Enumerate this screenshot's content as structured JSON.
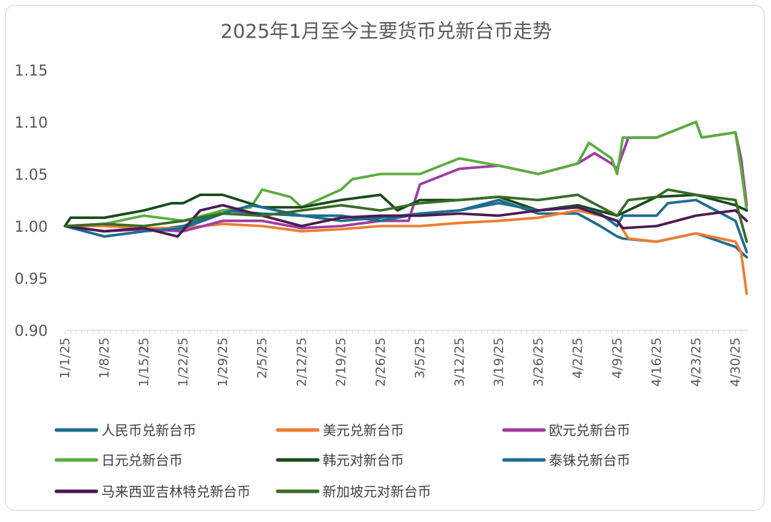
{
  "chart_data": {
    "type": "line",
    "title": "2025年1月至今主要货币兑新台币走势",
    "xlabel": "",
    "ylabel": "",
    "ylim": [
      0.9,
      1.15
    ],
    "yticks": [
      "1.15",
      "1.10",
      "1.05",
      "1.00",
      "0.95",
      "0.90"
    ],
    "x_start": "2025-01-01",
    "x_end": "2025-05-02",
    "xticks": [
      "1/1/25",
      "1/8/25",
      "1/15/25",
      "1/22/25",
      "1/29/25",
      "2/5/25",
      "2/12/25",
      "2/19/25",
      "2/26/25",
      "3/5/25",
      "3/12/25",
      "3/19/25",
      "3/26/25",
      "4/2/25",
      "4/9/25",
      "4/16/25",
      "4/23/25",
      "4/30/25"
    ],
    "grid": "none",
    "legend_position": "bottom",
    "series": [
      {
        "name": "人民币兑新台币",
        "color": "#1f6e8c",
        "points": [
          [
            "2025-01-01",
            1.0
          ],
          [
            "2025-01-08",
            0.99
          ],
          [
            "2025-01-15",
            0.995
          ],
          [
            "2025-01-22",
            1.0
          ],
          [
            "2025-01-29",
            1.015
          ],
          [
            "2025-02-05",
            1.012
          ],
          [
            "2025-02-12",
            1.01
          ],
          [
            "2025-02-19",
            1.005
          ],
          [
            "2025-02-26",
            1.008
          ],
          [
            "2025-03-05",
            1.012
          ],
          [
            "2025-03-12",
            1.015
          ],
          [
            "2025-03-19",
            1.025
          ],
          [
            "2025-03-26",
            1.012
          ],
          [
            "2025-04-02",
            1.012
          ],
          [
            "2025-04-06",
            1.0
          ],
          [
            "2025-04-09",
            0.99
          ],
          [
            "2025-04-10",
            0.988
          ],
          [
            "2025-04-16",
            0.985
          ],
          [
            "2025-04-23",
            0.993
          ],
          [
            "2025-04-30",
            0.98
          ],
          [
            "2025-05-02",
            0.97
          ]
        ]
      },
      {
        "name": "美元兑新台币",
        "color": "#ed7d31",
        "points": [
          [
            "2025-01-01",
            1.0
          ],
          [
            "2025-01-08",
            1.0
          ],
          [
            "2025-01-15",
            0.998
          ],
          [
            "2025-01-22",
            0.998
          ],
          [
            "2025-01-29",
            1.002
          ],
          [
            "2025-02-05",
            1.0
          ],
          [
            "2025-02-12",
            0.995
          ],
          [
            "2025-02-19",
            0.997
          ],
          [
            "2025-02-26",
            1.0
          ],
          [
            "2025-03-05",
            1.0
          ],
          [
            "2025-03-12",
            1.003
          ],
          [
            "2025-03-19",
            1.005
          ],
          [
            "2025-03-26",
            1.008
          ],
          [
            "2025-04-02",
            1.015
          ],
          [
            "2025-04-06",
            1.01
          ],
          [
            "2025-04-09",
            1.005
          ],
          [
            "2025-04-11",
            0.988
          ],
          [
            "2025-04-16",
            0.985
          ],
          [
            "2025-04-23",
            0.993
          ],
          [
            "2025-04-30",
            0.985
          ],
          [
            "2025-05-01",
            0.975
          ],
          [
            "2025-05-02",
            0.935
          ]
        ]
      },
      {
        "name": "欧元兑新台币",
        "color": "#9e3c9f",
        "points": [
          [
            "2025-01-01",
            1.0
          ],
          [
            "2025-01-08",
            0.995
          ],
          [
            "2025-01-15",
            0.997
          ],
          [
            "2025-01-22",
            0.995
          ],
          [
            "2025-01-29",
            1.005
          ],
          [
            "2025-02-05",
            1.005
          ],
          [
            "2025-02-12",
            0.998
          ],
          [
            "2025-02-19",
            1.0
          ],
          [
            "2025-02-26",
            1.005
          ],
          [
            "2025-03-03",
            1.005
          ],
          [
            "2025-03-05",
            1.04
          ],
          [
            "2025-03-12",
            1.055
          ],
          [
            "2025-03-19",
            1.058
          ],
          [
            "2025-03-26",
            1.05
          ],
          [
            "2025-04-02",
            1.06
          ],
          [
            "2025-04-05",
            1.07
          ],
          [
            "2025-04-08",
            1.06
          ],
          [
            "2025-04-09",
            1.055
          ],
          [
            "2025-04-11",
            1.085
          ],
          [
            "2025-04-16",
            1.085
          ],
          [
            "2025-04-23",
            1.1
          ],
          [
            "2025-04-24",
            1.085
          ],
          [
            "2025-04-30",
            1.09
          ],
          [
            "2025-05-01",
            1.065
          ],
          [
            "2025-05-02",
            1.02
          ]
        ]
      },
      {
        "name": "日元兑新台币",
        "color": "#5aad3e",
        "points": [
          [
            "2025-01-01",
            1.0
          ],
          [
            "2025-01-08",
            1.002
          ],
          [
            "2025-01-15",
            1.01
          ],
          [
            "2025-01-22",
            1.005
          ],
          [
            "2025-01-29",
            1.015
          ],
          [
            "2025-02-03",
            1.018
          ],
          [
            "2025-02-05",
            1.035
          ],
          [
            "2025-02-10",
            1.028
          ],
          [
            "2025-02-12",
            1.018
          ],
          [
            "2025-02-19",
            1.035
          ],
          [
            "2025-02-21",
            1.045
          ],
          [
            "2025-02-26",
            1.05
          ],
          [
            "2025-03-05",
            1.05
          ],
          [
            "2025-03-12",
            1.065
          ],
          [
            "2025-03-19",
            1.058
          ],
          [
            "2025-03-26",
            1.05
          ],
          [
            "2025-04-02",
            1.06
          ],
          [
            "2025-04-04",
            1.08
          ],
          [
            "2025-04-08",
            1.065
          ],
          [
            "2025-04-09",
            1.05
          ],
          [
            "2025-04-10",
            1.085
          ],
          [
            "2025-04-16",
            1.085
          ],
          [
            "2025-04-23",
            1.1
          ],
          [
            "2025-04-24",
            1.085
          ],
          [
            "2025-04-30",
            1.09
          ],
          [
            "2025-05-01",
            1.055
          ],
          [
            "2025-05-02",
            1.015
          ]
        ]
      },
      {
        "name": "韩元对新台币",
        "color": "#1a4a1a",
        "points": [
          [
            "2025-01-01",
            1.0
          ],
          [
            "2025-01-02",
            1.008
          ],
          [
            "2025-01-08",
            1.008
          ],
          [
            "2025-01-15",
            1.015
          ],
          [
            "2025-01-20",
            1.022
          ],
          [
            "2025-01-22",
            1.022
          ],
          [
            "2025-01-25",
            1.03
          ],
          [
            "2025-01-29",
            1.03
          ],
          [
            "2025-02-05",
            1.018
          ],
          [
            "2025-02-12",
            1.018
          ],
          [
            "2025-02-19",
            1.025
          ],
          [
            "2025-02-26",
            1.03
          ],
          [
            "2025-03-01",
            1.015
          ],
          [
            "2025-03-05",
            1.025
          ],
          [
            "2025-03-12",
            1.025
          ],
          [
            "2025-03-19",
            1.028
          ],
          [
            "2025-03-26",
            1.015
          ],
          [
            "2025-04-02",
            1.02
          ],
          [
            "2025-04-09",
            1.01
          ],
          [
            "2025-04-16",
            1.028
          ],
          [
            "2025-04-23",
            1.03
          ],
          [
            "2025-04-30",
            1.02
          ],
          [
            "2025-05-02",
            1.015
          ]
        ]
      },
      {
        "name": "泰铢兑新台币",
        "color": "#1c6e90",
        "points": [
          [
            "2025-01-01",
            1.0
          ],
          [
            "2025-01-08",
            0.99
          ],
          [
            "2025-01-15",
            0.995
          ],
          [
            "2025-01-22",
            0.998
          ],
          [
            "2025-01-29",
            1.012
          ],
          [
            "2025-02-03",
            1.02
          ],
          [
            "2025-02-05",
            1.018
          ],
          [
            "2025-02-12",
            1.01
          ],
          [
            "2025-02-19",
            1.01
          ],
          [
            "2025-02-26",
            1.005
          ],
          [
            "2025-03-05",
            1.012
          ],
          [
            "2025-03-12",
            1.015
          ],
          [
            "2025-03-19",
            1.022
          ],
          [
            "2025-03-26",
            1.015
          ],
          [
            "2025-04-02",
            1.018
          ],
          [
            "2025-04-06",
            1.012
          ],
          [
            "2025-04-09",
            1.0
          ],
          [
            "2025-04-10",
            1.01
          ],
          [
            "2025-04-16",
            1.01
          ],
          [
            "2025-04-18",
            1.022
          ],
          [
            "2025-04-23",
            1.025
          ],
          [
            "2025-04-30",
            1.005
          ],
          [
            "2025-05-02",
            0.975
          ]
        ]
      },
      {
        "name": "马来西亚吉林特兑新台币",
        "color": "#4b1a52",
        "points": [
          [
            "2025-01-01",
            1.0
          ],
          [
            "2025-01-08",
            0.995
          ],
          [
            "2025-01-15",
            0.998
          ],
          [
            "2025-01-21",
            0.99
          ],
          [
            "2025-01-25",
            1.015
          ],
          [
            "2025-01-29",
            1.02
          ],
          [
            "2025-02-05",
            1.01
          ],
          [
            "2025-02-12",
            1.0
          ],
          [
            "2025-02-19",
            1.008
          ],
          [
            "2025-02-26",
            1.01
          ],
          [
            "2025-03-05",
            1.01
          ],
          [
            "2025-03-12",
            1.012
          ],
          [
            "2025-03-19",
            1.01
          ],
          [
            "2025-03-26",
            1.015
          ],
          [
            "2025-04-02",
            1.018
          ],
          [
            "2025-04-09",
            1.005
          ],
          [
            "2025-04-10",
            0.998
          ],
          [
            "2025-04-16",
            1.0
          ],
          [
            "2025-04-23",
            1.01
          ],
          [
            "2025-04-30",
            1.015
          ],
          [
            "2025-05-02",
            1.005
          ]
        ]
      },
      {
        "name": "新加坡元对新台币",
        "color": "#376b27",
        "points": [
          [
            "2025-01-01",
            1.0
          ],
          [
            "2025-01-08",
            1.002
          ],
          [
            "2025-01-15",
            1.0
          ],
          [
            "2025-01-22",
            1.005
          ],
          [
            "2025-01-29",
            1.012
          ],
          [
            "2025-02-05",
            1.01
          ],
          [
            "2025-02-12",
            1.015
          ],
          [
            "2025-02-19",
            1.02
          ],
          [
            "2025-02-26",
            1.015
          ],
          [
            "2025-03-05",
            1.022
          ],
          [
            "2025-03-12",
            1.025
          ],
          [
            "2025-03-19",
            1.028
          ],
          [
            "2025-03-26",
            1.025
          ],
          [
            "2025-04-02",
            1.03
          ],
          [
            "2025-04-09",
            1.01
          ],
          [
            "2025-04-11",
            1.025
          ],
          [
            "2025-04-16",
            1.028
          ],
          [
            "2025-04-18",
            1.035
          ],
          [
            "2025-04-23",
            1.03
          ],
          [
            "2025-04-30",
            1.025
          ],
          [
            "2025-05-02",
            0.985
          ]
        ]
      }
    ]
  }
}
